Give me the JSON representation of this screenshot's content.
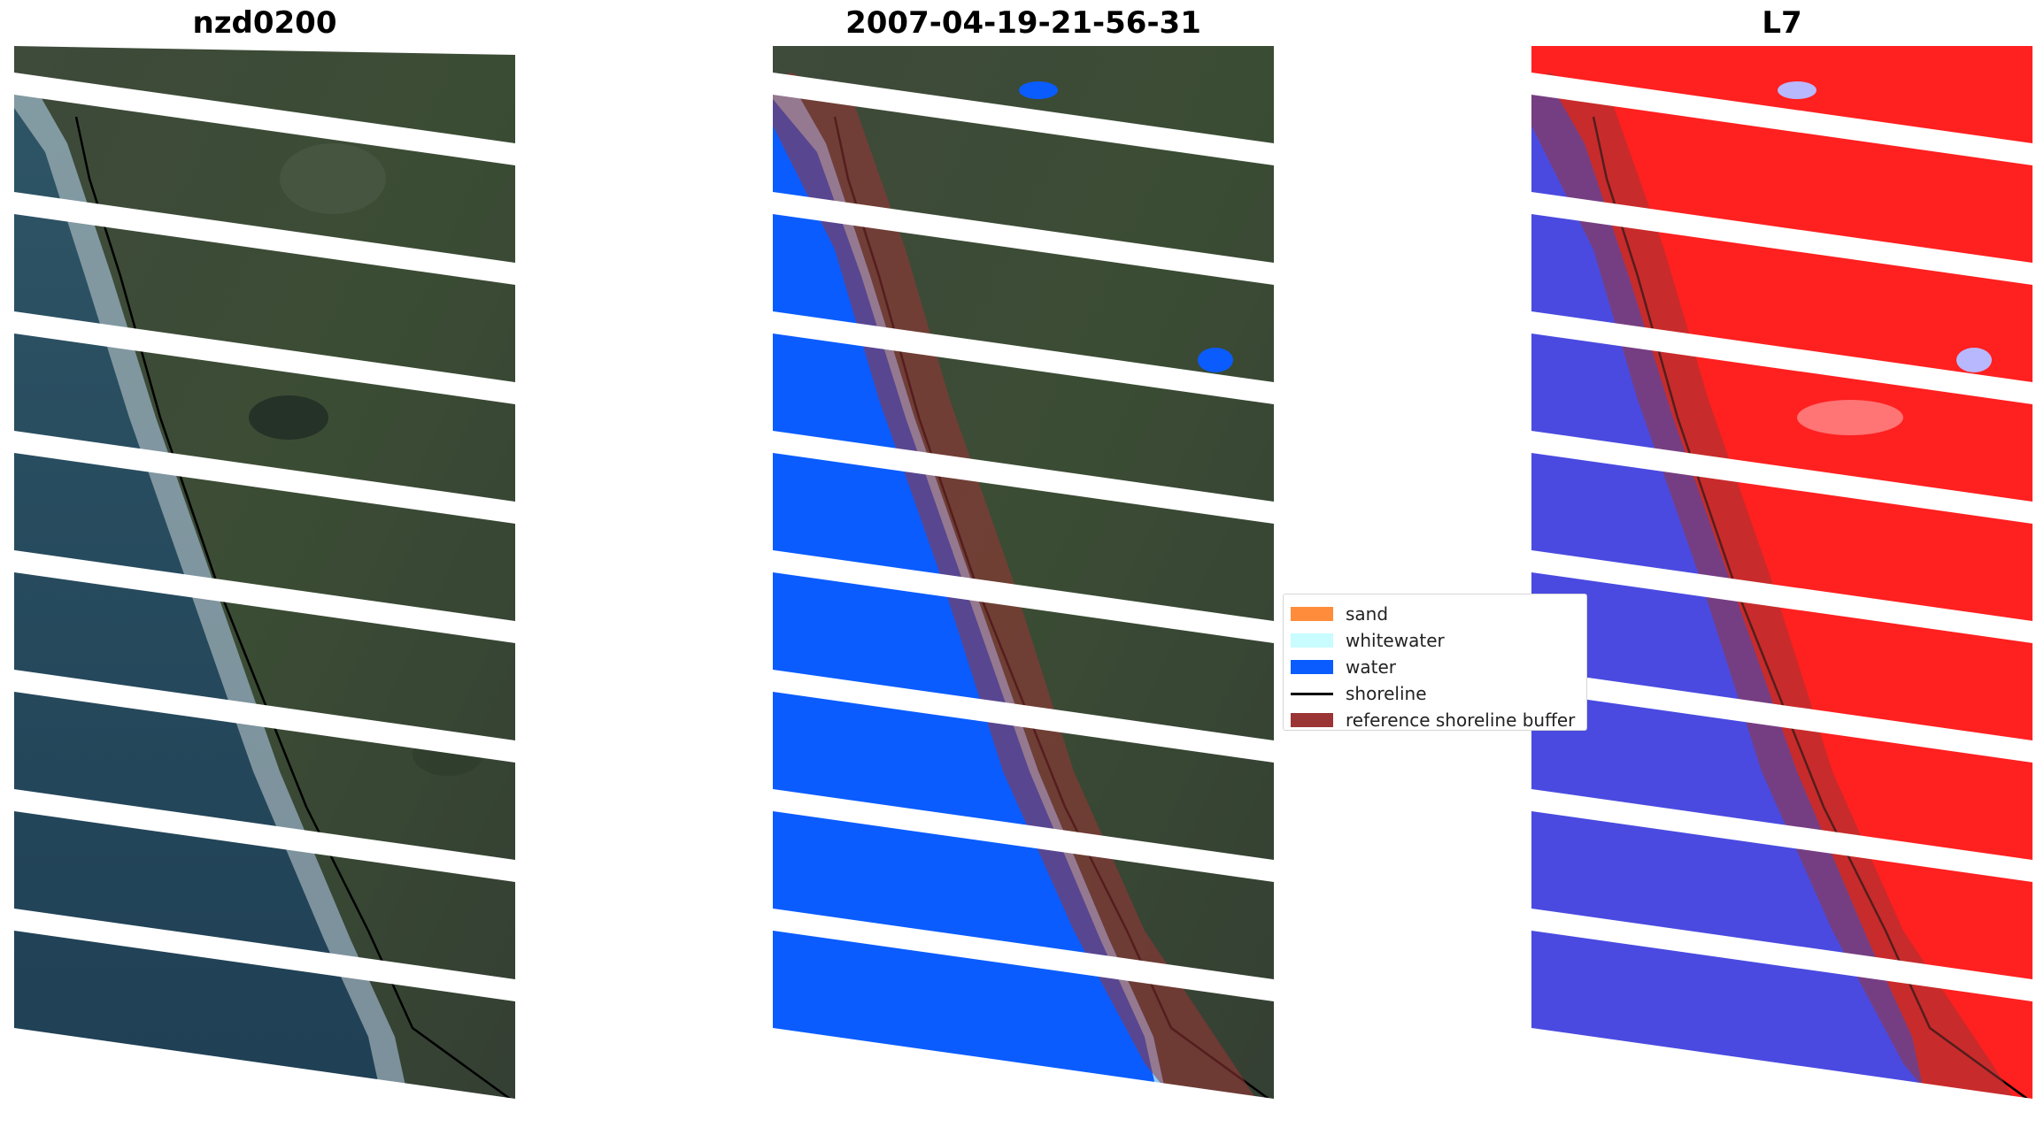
{
  "panels": [
    {
      "title": "nzd0200",
      "kind": "rgb"
    },
    {
      "title": "2007-04-19-21-56-31",
      "kind": "classified"
    },
    {
      "title": "L7",
      "kind": "index"
    }
  ],
  "legend": {
    "items": [
      {
        "label": "sand",
        "color": "#ff8c3a",
        "type": "patch"
      },
      {
        "label": "whitewater",
        "color": "#c8fcff",
        "type": "patch"
      },
      {
        "label": "water",
        "color": "#0a5cff",
        "type": "patch"
      },
      {
        "label": "shoreline",
        "color": "#000000",
        "type": "line"
      },
      {
        "label": "reference shoreline buffer",
        "color": "#9b3434",
        "type": "patch"
      }
    ]
  },
  "colors": {
    "land": "#3d4a38",
    "ocean": "#24475a",
    "classified_water": "#0a5cff",
    "index_land": "#ff2020",
    "index_water": "#4a4ae0",
    "buffer": "#9b3434",
    "gap": "#ffffff"
  }
}
